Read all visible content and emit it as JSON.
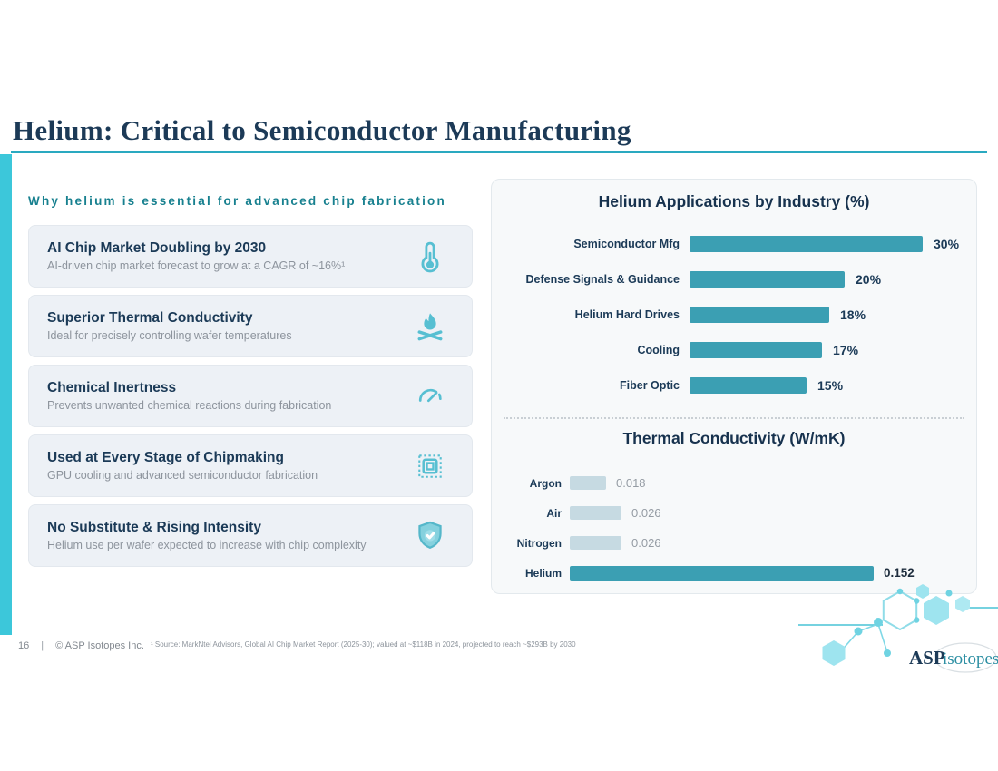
{
  "slide": {
    "title": "Helium: Critical to Semiconductor Manufacturing"
  },
  "left_column": {
    "heading": "Why helium is essential for advanced chip fabrication",
    "cards": [
      {
        "title": "AI Chip Market Doubling by 2030",
        "desc": "AI-driven chip market forecast to grow at a CAGR of ~16%¹",
        "icon": "thermometer-icon"
      },
      {
        "title": "Superior Thermal Conductivity",
        "desc": "Ideal for precisely controlling wafer temperatures",
        "icon": "campfire-icon"
      },
      {
        "title": "Chemical Inertness",
        "desc": "Prevents unwanted chemical reactions during fabrication",
        "icon": "gauge-icon"
      },
      {
        "title": "Used at Every Stage of Chipmaking",
        "desc": "GPU cooling and advanced semiconductor fabrication",
        "icon": "chip-icon"
      },
      {
        "title": "No Substitute & Rising Intensity",
        "desc": "Helium use per wafer expected to increase with chip complexity",
        "icon": "shield-check-icon"
      }
    ]
  },
  "chart_data": [
    {
      "type": "bar",
      "orientation": "horizontal",
      "title": "Helium Applications by Industry (%)",
      "categories": [
        "Semiconductor Mfg",
        "Defense Signals & Guidance",
        "Helium Hard Drives",
        "Cooling",
        "Fiber Optic"
      ],
      "values": [
        30,
        20,
        18,
        17,
        15
      ],
      "value_labels": [
        "30%",
        "20%",
        "18%",
        "17%",
        "15%"
      ],
      "xlim": [
        0,
        30
      ],
      "bar_color": "#3b9fb3",
      "grid": false,
      "legend": false
    },
    {
      "type": "bar",
      "orientation": "horizontal",
      "title": "Thermal Conductivity (W/mK)",
      "categories": [
        "Argon",
        "Air",
        "Nitrogen",
        "Helium"
      ],
      "values": [
        0.018,
        0.026,
        0.026,
        0.152
      ],
      "value_labels": [
        "0.018",
        "0.026",
        "0.026",
        "0.152"
      ],
      "xlim": [
        0,
        0.152
      ],
      "bar_color": "#c6dae2",
      "highlight_category": "Helium",
      "highlight_color": "#3b9fb3",
      "grid": false,
      "legend": false
    }
  ],
  "footer": {
    "page_number": "16",
    "divider": "|",
    "copyright": "© ASP Isotopes Inc.",
    "footnote": "¹ Source: MarkNtel Advisors, Global AI Chip Market Report (2025-30); valued at ~$118B in 2024, projected to reach ~$293B by 2030"
  },
  "logo": {
    "name_primary": "ASP",
    "name_secondary": "isotopes"
  },
  "colors": {
    "accent_cyan": "#3cc7da",
    "rule_teal": "#2aa9c0",
    "teal_bar": "#3b9fb3",
    "light_bar": "#c6dae2",
    "navy": "#1b3a57",
    "teal_heading": "#17808f",
    "icon_teal": "#57bfd2",
    "panel_bg": "#f7f9fa",
    "card_bg": "#edf1f6"
  }
}
